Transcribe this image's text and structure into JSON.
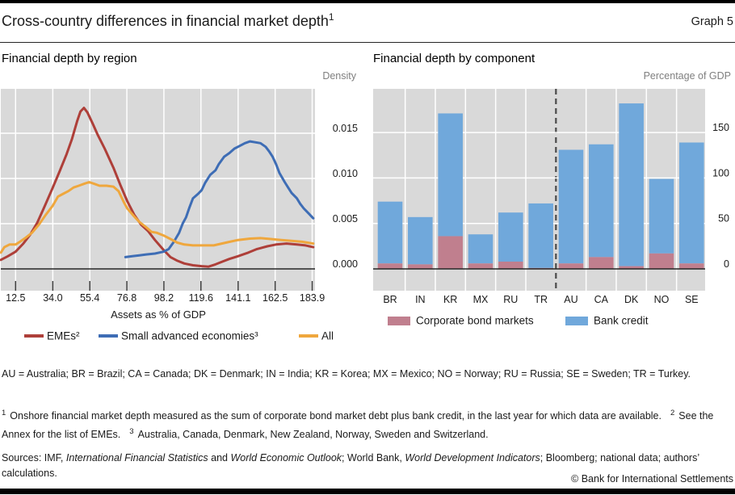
{
  "page": {
    "title": "Cross-country differences in financial market depth",
    "title_sup": "1",
    "graph_label": "Graph 5",
    "copyright": "© Bank for International Settlements"
  },
  "colors": {
    "plot_bg": "#d9d9d9",
    "gridline": "#ffffff",
    "zero_line": "#262626",
    "separator_dash": "#4a4a4a",
    "emes_red": "#ae3f39",
    "advanced_blue": "#3e6db5",
    "all_yellow": "#efa73d",
    "bond_pink": "#c07f8e",
    "credit_blue": "#70a8db"
  },
  "chart_data": [
    {
      "type": "line",
      "panel_title": "Financial depth by region",
      "unit_label": "Density",
      "xlabel": "Assets as % of GDP",
      "xticks": [
        12.5,
        34.0,
        55.4,
        76.8,
        98.2,
        119.6,
        141.1,
        162.5,
        183.9
      ],
      "xtick_labels": [
        "12.5",
        "34.0",
        "55.4",
        "76.8",
        "98.2",
        "119.6",
        "141.1",
        "162.5",
        "183.9"
      ],
      "yticks": [
        0.0,
        0.005,
        0.01,
        0.015
      ],
      "ytick_labels": [
        "0.000",
        "0.005",
        "0.010",
        "0.015"
      ],
      "xlim": [
        4,
        186
      ],
      "ylim": [
        0,
        0.02
      ],
      "grid": true,
      "legend_position": "bottom",
      "series": [
        {
          "name": "EMEs²",
          "color": "#ae3f39",
          "points": [
            [
              4,
              0.001
            ],
            [
              8,
              0.0014
            ],
            [
              12.5,
              0.0019
            ],
            [
              17,
              0.0028
            ],
            [
              21,
              0.0038
            ],
            [
              25,
              0.0051
            ],
            [
              29,
              0.0068
            ],
            [
              34,
              0.009
            ],
            [
              38,
              0.0108
            ],
            [
              42,
              0.0127
            ],
            [
              45,
              0.0143
            ],
            [
              48,
              0.0163
            ],
            [
              50,
              0.0174
            ],
            [
              52,
              0.0178
            ],
            [
              54,
              0.0173
            ],
            [
              57,
              0.0161
            ],
            [
              60,
              0.0148
            ],
            [
              64,
              0.0133
            ],
            [
              69,
              0.0112
            ],
            [
              73,
              0.0093
            ],
            [
              77,
              0.0075
            ],
            [
              81,
              0.006
            ],
            [
              85,
              0.0049
            ],
            [
              89,
              0.0042
            ],
            [
              93,
              0.0032
            ],
            [
              98,
              0.0021
            ],
            [
              102,
              0.0013
            ],
            [
              106,
              0.0009
            ],
            [
              110,
              0.0006
            ],
            [
              115,
              0.0004
            ],
            [
              120,
              0.0003
            ],
            [
              124,
              0.00025
            ],
            [
              128,
              0.0005
            ],
            [
              132,
              0.0008
            ],
            [
              136,
              0.0011
            ],
            [
              141,
              0.0014
            ],
            [
              147,
              0.0018
            ],
            [
              152,
              0.0022
            ],
            [
              158,
              0.0025
            ],
            [
              163,
              0.0027
            ],
            [
              169,
              0.0028
            ],
            [
              175,
              0.0027
            ],
            [
              180,
              0.0026
            ],
            [
              184.5,
              0.0024
            ]
          ]
        },
        {
          "name": "Small advanced economies³",
          "color": "#3e6db5",
          "points": [
            [
              76,
              0.0013
            ],
            [
              80,
              0.0014
            ],
            [
              84,
              0.0015
            ],
            [
              88,
              0.0016
            ],
            [
              93,
              0.0017
            ],
            [
              98,
              0.0019
            ],
            [
              101,
              0.0022
            ],
            [
              104,
              0.003
            ],
            [
              107,
              0.004
            ],
            [
              109,
              0.005
            ],
            [
              111,
              0.0057
            ],
            [
              113,
              0.0068
            ],
            [
              115,
              0.0078
            ],
            [
              118,
              0.0083
            ],
            [
              120,
              0.0087
            ],
            [
              122,
              0.0095
            ],
            [
              125,
              0.0104
            ],
            [
              128,
              0.0109
            ],
            [
              130,
              0.0116
            ],
            [
              133,
              0.0124
            ],
            [
              136,
              0.0128
            ],
            [
              139,
              0.0133
            ],
            [
              142,
              0.0136
            ],
            [
              145,
              0.0139
            ],
            [
              148,
              0.0141
            ],
            [
              151,
              0.014
            ],
            [
              154,
              0.0139
            ],
            [
              157,
              0.0135
            ],
            [
              159,
              0.013
            ],
            [
              161,
              0.0124
            ],
            [
              163,
              0.0116
            ],
            [
              165,
              0.0106
            ],
            [
              168,
              0.0096
            ],
            [
              170,
              0.009
            ],
            [
              172,
              0.0084
            ],
            [
              175,
              0.0078
            ],
            [
              177,
              0.0072
            ],
            [
              179,
              0.0067
            ],
            [
              182,
              0.0061
            ],
            [
              184.5,
              0.0056
            ]
          ]
        },
        {
          "name": "All",
          "color": "#efa73d",
          "points": [
            [
              4,
              0.0018
            ],
            [
              6,
              0.0024
            ],
            [
              9,
              0.0027
            ],
            [
              12.5,
              0.0027
            ],
            [
              15,
              0.003
            ],
            [
              18,
              0.0034
            ],
            [
              22,
              0.004
            ],
            [
              26,
              0.0049
            ],
            [
              30,
              0.006
            ],
            [
              34,
              0.007
            ],
            [
              37,
              0.008
            ],
            [
              40,
              0.0083
            ],
            [
              43,
              0.0086
            ],
            [
              46,
              0.009
            ],
            [
              49,
              0.0092
            ],
            [
              52,
              0.0094
            ],
            [
              55,
              0.0096
            ],
            [
              58,
              0.0094
            ],
            [
              61,
              0.0092
            ],
            [
              65,
              0.0092
            ],
            [
              69,
              0.0091
            ],
            [
              72,
              0.0086
            ],
            [
              75,
              0.0074
            ],
            [
              77,
              0.0067
            ],
            [
              81,
              0.0058
            ],
            [
              84,
              0.0052
            ],
            [
              88,
              0.0046
            ],
            [
              91,
              0.0041
            ],
            [
              94,
              0.004
            ],
            [
              98,
              0.0037
            ],
            [
              102,
              0.0033
            ],
            [
              106,
              0.0029
            ],
            [
              110,
              0.0027
            ],
            [
              115,
              0.0026
            ],
            [
              120,
              0.0026
            ],
            [
              127,
              0.0026
            ],
            [
              134,
              0.0029
            ],
            [
              141,
              0.0032
            ],
            [
              148,
              0.00335
            ],
            [
              154,
              0.0034
            ],
            [
              160,
              0.0033
            ],
            [
              166,
              0.0032
            ],
            [
              172,
              0.0031
            ],
            [
              178,
              0.003
            ],
            [
              184.5,
              0.0028
            ]
          ]
        }
      ]
    },
    {
      "type": "bar",
      "panel_title": "Financial depth by component",
      "unit_label": "Percentage of GDP",
      "categories": [
        "BR",
        "IN",
        "KR",
        "MX",
        "RU",
        "TR",
        "AU",
        "CA",
        "DK",
        "NO",
        "SE"
      ],
      "separator_after_index": 5,
      "yticks": [
        0,
        50,
        100,
        150
      ],
      "ytick_labels": [
        "0",
        "50",
        "100",
        "150"
      ],
      "ylim": [
        0,
        198
      ],
      "grid": true,
      "stacked": true,
      "legend_position": "bottom",
      "series": [
        {
          "name": "Corporate bond markets",
          "color": "#c07f8e",
          "values": [
            6,
            5,
            36,
            6,
            8,
            1,
            6,
            13,
            3,
            17,
            6
          ]
        },
        {
          "name": "Bank credit",
          "color": "#70a8db",
          "values": [
            68,
            52,
            135,
            32,
            54,
            71,
            125,
            124,
            179,
            82,
            133
          ]
        }
      ],
      "totals": [
        74,
        57,
        171,
        38,
        62,
        72,
        131,
        137,
        182,
        99,
        139
      ]
    }
  ],
  "abbreviations": "AU = Australia; BR = Brazil; CA = Canada; DK = Denmark; IN = India; KR = Korea; MX = Mexico; NO = Norway; RU = Russia; SE = Sweden; TR = Turkey.",
  "footnote": {
    "sup1": "1",
    "text1": "Onshore financial market depth measured as the sum of corporate bond market debt plus bank credit, in the last year for which data are available.",
    "sup2": "2",
    "text2": "See the Annex for the list of EMEs.",
    "sup3": "3",
    "text3": "Australia, Canada, Denmark, New Zealand, Norway, Sweden and Switzerland."
  },
  "sources": {
    "prefix": "Sources: IMF, ",
    "title1": "International Financial Statistics",
    "mid1": " and ",
    "title2": "World Economic Outlook",
    "mid2": "; World Bank, ",
    "title3": "World Development Indicators",
    "suffix": "; Bloomberg; national data; authors’ calculations."
  }
}
